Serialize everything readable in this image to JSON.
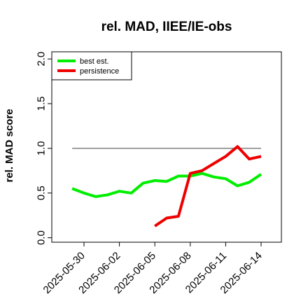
{
  "chart_data": {
    "type": "line",
    "title": "rel. MAD, IIEE/IE-obs",
    "xlabel": "",
    "ylabel": "rel. MAD score",
    "ylim": [
      -0.05,
      2.08
    ],
    "yticks": [
      "0.0",
      "0.5",
      "1.0",
      "1.5",
      "2.0"
    ],
    "xticks": [
      "2025-05-30",
      "2025-06-02",
      "2025-06-05",
      "2025-06-08",
      "2025-06-11",
      "2025-06-14"
    ],
    "reference_line": {
      "y": 1.0,
      "x_start": "2025-05-29",
      "x_end": "2025-06-14",
      "color": "#555555"
    },
    "legend": {
      "position": "top-left"
    },
    "series": [
      {
        "name": "best est.",
        "color": "#00ee00",
        "x": [
          "2025-05-29",
          "2025-05-30",
          "2025-05-31",
          "2025-06-01",
          "2025-06-02",
          "2025-06-03",
          "2025-06-04",
          "2025-06-05",
          "2025-06-06",
          "2025-06-07",
          "2025-06-08",
          "2025-06-09",
          "2025-06-10",
          "2025-06-11",
          "2025-06-12",
          "2025-06-13",
          "2025-06-14"
        ],
        "values": [
          0.55,
          0.5,
          0.46,
          0.48,
          0.52,
          0.5,
          0.61,
          0.64,
          0.63,
          0.69,
          0.69,
          0.72,
          0.68,
          0.66,
          0.58,
          0.62,
          0.71
        ]
      },
      {
        "name": "persistence",
        "color": "#ee0000",
        "x": [
          "2025-06-05",
          "2025-06-06",
          "2025-06-07",
          "2025-06-08",
          "2025-06-09",
          "2025-06-10",
          "2025-06-11",
          "2025-06-12",
          "2025-06-13",
          "2025-06-14"
        ],
        "values": [
          0.13,
          0.22,
          0.24,
          0.72,
          0.75,
          0.83,
          0.91,
          1.02,
          0.88,
          0.91
        ]
      }
    ]
  }
}
